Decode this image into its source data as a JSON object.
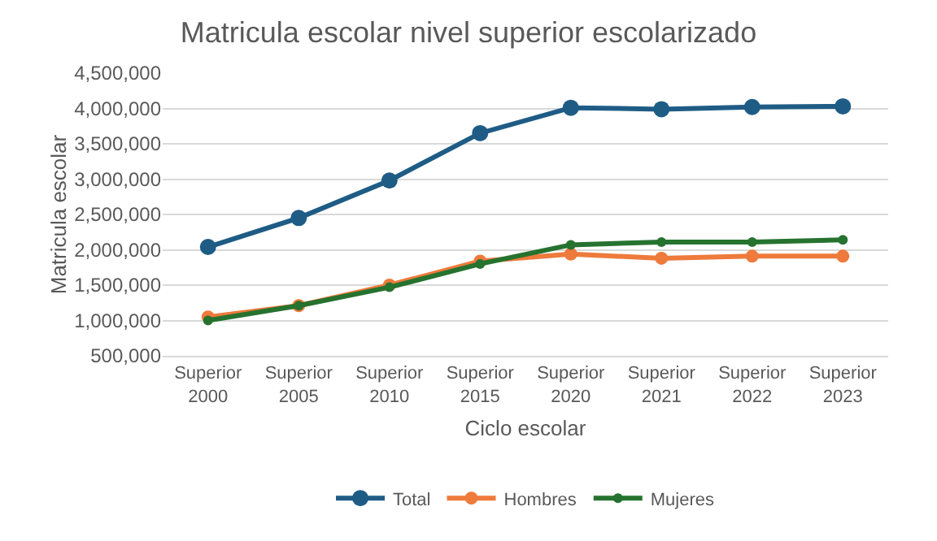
{
  "chart_data": {
    "type": "line",
    "title": "Matricula escolar nivel superior escolarizado",
    "xlabel": "Ciclo escolar",
    "ylabel": "Matricula escolar",
    "categories": [
      "Superior 2000",
      "Superior 2005",
      "Superior 2010",
      "Superior 2015",
      "Superior 2020",
      "Superior 2021",
      "Superior 2022",
      "Superior 2023"
    ],
    "series": [
      {
        "name": "Total",
        "color": "#1f5c85",
        "values": [
          2040000,
          2450000,
          2980000,
          3650000,
          4010000,
          3990000,
          4020000,
          4030000
        ]
      },
      {
        "name": "Hombres",
        "color": "#ee7a3b",
        "values": [
          1050000,
          1210000,
          1500000,
          1840000,
          1940000,
          1880000,
          1910000,
          1910000
        ]
      },
      {
        "name": "Mujeres",
        "color": "#26722f",
        "values": [
          1000000,
          1210000,
          1470000,
          1800000,
          2070000,
          2110000,
          2110000,
          2140000
        ]
      }
    ],
    "ylim": [
      500000,
      4500000
    ],
    "yticks": [
      {
        "value": 500000,
        "label": "500,000"
      },
      {
        "value": 1000000,
        "label": "1,000,000"
      },
      {
        "value": 1500000,
        "label": "1,500,000"
      },
      {
        "value": 2000000,
        "label": "2,000,000"
      },
      {
        "value": 2500000,
        "label": "2,500,000"
      },
      {
        "value": 3000000,
        "label": "3,000,000"
      },
      {
        "value": 3500000,
        "label": "3,500,000"
      },
      {
        "value": 4000000,
        "label": "4,000,000"
      },
      {
        "value": 4500000,
        "label": "4,500,000"
      }
    ],
    "grid": "y",
    "legend": "bottom",
    "marker": "circle",
    "line_style": "solid"
  }
}
